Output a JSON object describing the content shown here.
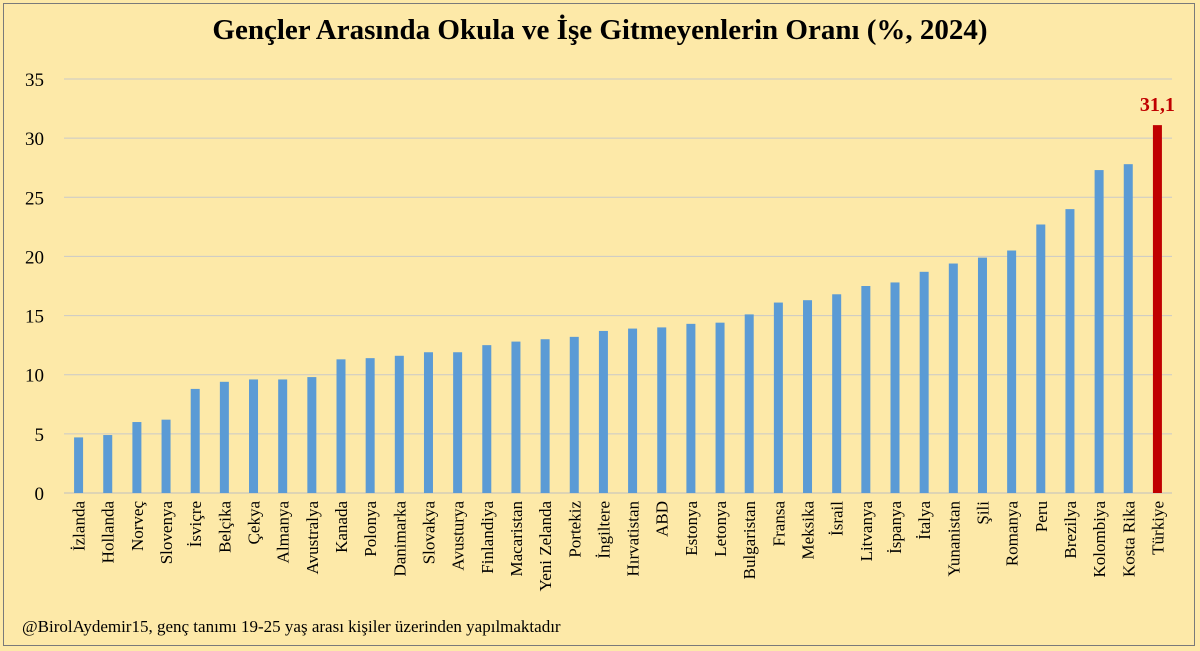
{
  "chart_data": {
    "type": "bar",
    "title": "Gençler Arasında Okula ve İşe Gitmeyenlerin Oranı (%, 2024)",
    "xlabel": "",
    "ylabel": "",
    "ylim": [
      0,
      35
    ],
    "yticks": [
      0,
      5,
      10,
      15,
      20,
      25,
      30,
      35
    ],
    "grid": true,
    "bar_color": "#5b9bd5",
    "highlight_color": "#c00000",
    "highlight_category": "Türkiye",
    "highlight_label": "31,1",
    "categories": [
      "İzlanda",
      "Hollanda",
      "Norveç",
      "Slovenya",
      "İsviçre",
      "Belçika",
      "Çekya",
      "Almanya",
      "Avustralya",
      "Kanada",
      "Polonya",
      "Danimarka",
      "Slovakya",
      "Avusturya",
      "Finlandiya",
      "Macaristan",
      "Yeni Zelanda",
      "Portekiz",
      "İngiltere",
      "Hırvatistan",
      "ABD",
      "Estonya",
      "Letonya",
      "Bulgaristan",
      "Fransa",
      "Meksika",
      "İsrail",
      "Litvanya",
      "İspanya",
      "İtalya",
      "Yunanistan",
      "Şili",
      "Romanya",
      "Peru",
      "Brezilya",
      "Kolombiya",
      "Kosta Rika",
      "Türkiye"
    ],
    "values": [
      4.7,
      4.9,
      6.0,
      6.2,
      8.8,
      9.4,
      9.6,
      9.6,
      9.8,
      11.3,
      11.4,
      11.6,
      11.9,
      11.9,
      12.5,
      12.8,
      13.0,
      13.2,
      13.7,
      13.9,
      14.0,
      14.3,
      14.4,
      15.1,
      16.1,
      16.3,
      16.8,
      17.5,
      17.8,
      18.7,
      19.4,
      19.9,
      20.5,
      22.7,
      24.0,
      27.3,
      27.8,
      31.1
    ]
  },
  "footnote": "@BirolAydemir15, genç tanımı 19-25 yaş arası kişiler üzerinden yapılmaktadır"
}
